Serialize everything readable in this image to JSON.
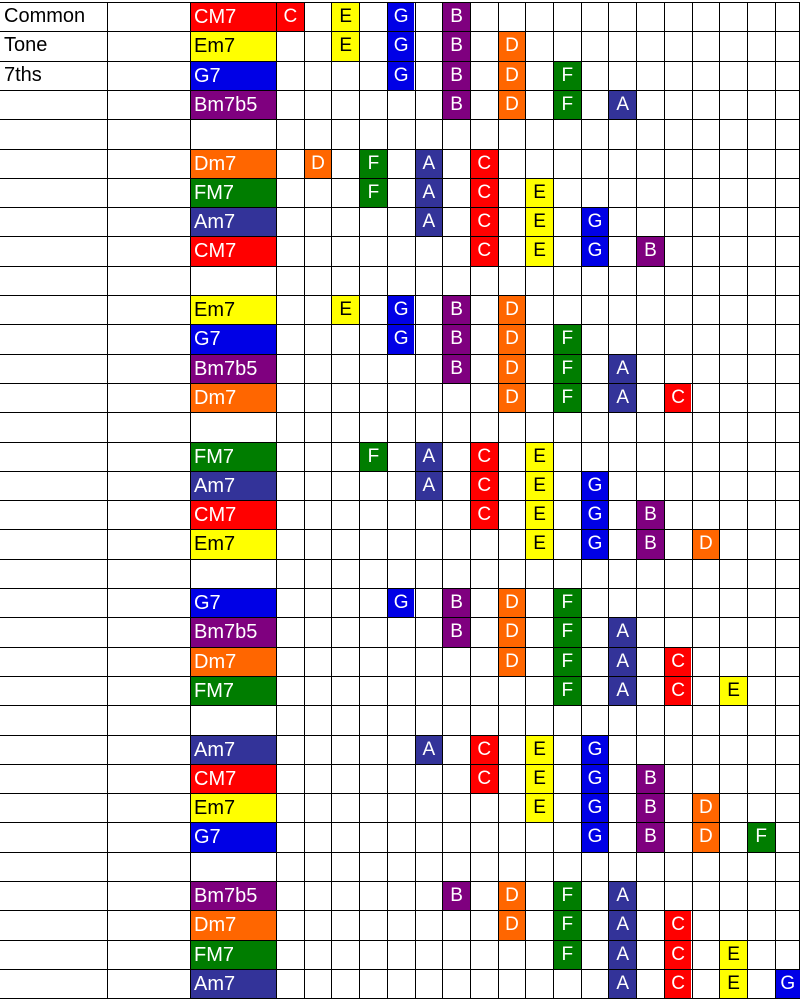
{
  "header": [
    "Common",
    "Tone",
    "7ths"
  ],
  "colors": {
    "C": "#ff0000",
    "D": "#ff6600",
    "E": "#ffff00",
    "F": "#007d00",
    "G": "#0000e6",
    "A": "#333399",
    "B": "#7f007f"
  },
  "chord_root": {
    "CM7": "C",
    "Dm7": "D",
    "Em7": "E",
    "FM7": "F",
    "G7": "G",
    "Am7": "A",
    "Bm7b5": "B"
  },
  "note_columns": {
    "C": [
      0,
      7,
      14
    ],
    "D": [
      1,
      8
    ],
    "E": [
      2,
      9,
      16
    ],
    "F": [
      3,
      10,
      17
    ],
    "G": [
      4,
      11,
      18
    ],
    "A": [
      5,
      12
    ],
    "B": [
      6,
      13
    ]
  },
  "groups": [
    [
      {
        "chord": "CM7",
        "notes": [
          "C",
          "E",
          "G",
          "B"
        ],
        "start": 0
      },
      {
        "chord": "Em7",
        "notes": [
          "E",
          "G",
          "B",
          "D"
        ],
        "start": 2
      },
      {
        "chord": "G7",
        "notes": [
          "G",
          "B",
          "D",
          "F"
        ],
        "start": 4
      },
      {
        "chord": "Bm7b5",
        "notes": [
          "B",
          "D",
          "F",
          "A"
        ],
        "start": 6
      }
    ],
    [
      {
        "chord": "Dm7",
        "notes": [
          "D",
          "F",
          "A",
          "C"
        ],
        "start": 1
      },
      {
        "chord": "FM7",
        "notes": [
          "F",
          "A",
          "C",
          "E"
        ],
        "start": 3
      },
      {
        "chord": "Am7",
        "notes": [
          "A",
          "C",
          "E",
          "G"
        ],
        "start": 5
      },
      {
        "chord": "CM7",
        "notes": [
          "C",
          "E",
          "G",
          "B"
        ],
        "start": 7
      }
    ],
    [
      {
        "chord": "Em7",
        "notes": [
          "E",
          "G",
          "B",
          "D"
        ],
        "start": 2
      },
      {
        "chord": "G7",
        "notes": [
          "G",
          "B",
          "D",
          "F"
        ],
        "start": 4
      },
      {
        "chord": "Bm7b5",
        "notes": [
          "B",
          "D",
          "F",
          "A"
        ],
        "start": 6
      },
      {
        "chord": "Dm7",
        "notes": [
          "D",
          "F",
          "A",
          "C"
        ],
        "start": 8
      }
    ],
    [
      {
        "chord": "FM7",
        "notes": [
          "F",
          "A",
          "C",
          "E"
        ],
        "start": 3
      },
      {
        "chord": "Am7",
        "notes": [
          "A",
          "C",
          "E",
          "G"
        ],
        "start": 5
      },
      {
        "chord": "CM7",
        "notes": [
          "C",
          "E",
          "G",
          "B"
        ],
        "start": 7
      },
      {
        "chord": "Em7",
        "notes": [
          "E",
          "G",
          "B",
          "D"
        ],
        "start": 9
      }
    ],
    [
      {
        "chord": "G7",
        "notes": [
          "G",
          "B",
          "D",
          "F"
        ],
        "start": 4
      },
      {
        "chord": "Bm7b5",
        "notes": [
          "B",
          "D",
          "F",
          "A"
        ],
        "start": 6
      },
      {
        "chord": "Dm7",
        "notes": [
          "D",
          "F",
          "A",
          "C"
        ],
        "start": 8
      },
      {
        "chord": "FM7",
        "notes": [
          "F",
          "A",
          "C",
          "E"
        ],
        "start": 10
      }
    ],
    [
      {
        "chord": "Am7",
        "notes": [
          "A",
          "C",
          "E",
          "G"
        ],
        "start": 5
      },
      {
        "chord": "CM7",
        "notes": [
          "C",
          "E",
          "G",
          "B"
        ],
        "start": 7
      },
      {
        "chord": "Em7",
        "notes": [
          "E",
          "G",
          "B",
          "D"
        ],
        "start": 9
      },
      {
        "chord": "G7",
        "notes": [
          "G",
          "B",
          "D",
          "F"
        ],
        "start": 11
      }
    ],
    [
      {
        "chord": "Bm7b5",
        "notes": [
          "B",
          "D",
          "F",
          "A"
        ],
        "start": 6
      },
      {
        "chord": "Dm7",
        "notes": [
          "D",
          "F",
          "A",
          "C"
        ],
        "start": 8
      },
      {
        "chord": "FM7",
        "notes": [
          "F",
          "A",
          "C",
          "E"
        ],
        "start": 10
      },
      {
        "chord": "Am7",
        "notes": [
          "A",
          "C",
          "E",
          "G"
        ],
        "start": 12
      }
    ]
  ]
}
